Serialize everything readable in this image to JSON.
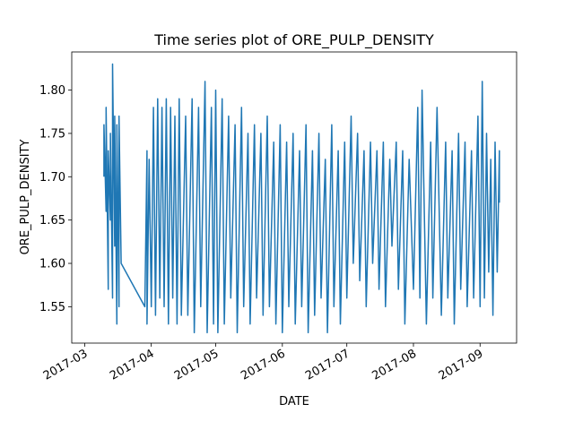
{
  "chart_data": {
    "type": "line",
    "title": "Time series plot of ORE_PULP_DENSITY",
    "xlabel": "DATE",
    "ylabel": "ORE_PULP_DENSITY",
    "xlim": [
      "2017-02-23",
      "2017-09-18"
    ],
    "ylim": [
      1.508,
      1.844
    ],
    "xticks": [
      {
        "date": "2017-03-01",
        "label": "2017-03"
      },
      {
        "date": "2017-04-01",
        "label": "2017-04"
      },
      {
        "date": "2017-05-01",
        "label": "2017-05"
      },
      {
        "date": "2017-06-01",
        "label": "2017-06"
      },
      {
        "date": "2017-07-01",
        "label": "2017-07"
      },
      {
        "date": "2017-08-01",
        "label": "2017-08"
      },
      {
        "date": "2017-09-01",
        "label": "2017-09"
      }
    ],
    "yticks": [
      {
        "value": 1.55,
        "label": "1.55"
      },
      {
        "value": 1.6,
        "label": "1.60"
      },
      {
        "value": 1.65,
        "label": "1.65"
      },
      {
        "value": 1.7,
        "label": "1.70"
      },
      {
        "value": 1.75,
        "label": "1.75"
      },
      {
        "value": 1.8,
        "label": "1.80"
      }
    ],
    "grid": false,
    "series": [
      {
        "color": "#1f77b4",
        "points": [
          [
            "2017-03-10",
            1.7
          ],
          [
            "2017-03-10",
            1.76
          ],
          [
            "2017-03-11",
            1.66
          ],
          [
            "2017-03-11",
            1.78
          ],
          [
            "2017-03-12",
            1.57
          ],
          [
            "2017-03-12",
            1.73
          ],
          [
            "2017-03-13",
            1.65
          ],
          [
            "2017-03-13",
            1.75
          ],
          [
            "2017-03-14",
            1.56
          ],
          [
            "2017-03-14",
            1.83
          ],
          [
            "2017-03-15",
            1.62
          ],
          [
            "2017-03-15",
            1.77
          ],
          [
            "2017-03-16",
            1.53
          ],
          [
            "2017-03-16",
            1.76
          ],
          [
            "2017-03-17",
            1.55
          ],
          [
            "2017-03-17",
            1.77
          ],
          [
            "2017-03-18",
            1.6
          ],
          [
            "2017-03-29",
            1.55
          ],
          [
            "2017-03-30",
            1.73
          ],
          [
            "2017-03-30",
            1.53
          ],
          [
            "2017-03-31",
            1.72
          ],
          [
            "2017-04-01",
            1.55
          ],
          [
            "2017-04-02",
            1.78
          ],
          [
            "2017-04-03",
            1.54
          ],
          [
            "2017-04-04",
            1.79
          ],
          [
            "2017-04-05",
            1.56
          ],
          [
            "2017-04-06",
            1.78
          ],
          [
            "2017-04-07",
            1.55
          ],
          [
            "2017-04-08",
            1.79
          ],
          [
            "2017-04-09",
            1.53
          ],
          [
            "2017-04-10",
            1.78
          ],
          [
            "2017-04-11",
            1.56
          ],
          [
            "2017-04-12",
            1.77
          ],
          [
            "2017-04-13",
            1.53
          ],
          [
            "2017-04-14",
            1.79
          ],
          [
            "2017-04-15",
            1.54
          ],
          [
            "2017-04-17",
            1.77
          ],
          [
            "2017-04-18",
            1.54
          ],
          [
            "2017-04-20",
            1.79
          ],
          [
            "2017-04-21",
            1.52
          ],
          [
            "2017-04-23",
            1.78
          ],
          [
            "2017-04-24",
            1.55
          ],
          [
            "2017-04-26",
            1.81
          ],
          [
            "2017-04-27",
            1.52
          ],
          [
            "2017-04-29",
            1.78
          ],
          [
            "2017-04-30",
            1.53
          ],
          [
            "2017-05-01",
            1.8
          ],
          [
            "2017-05-02",
            1.52
          ],
          [
            "2017-05-04",
            1.79
          ],
          [
            "2017-05-05",
            1.53
          ],
          [
            "2017-05-07",
            1.77
          ],
          [
            "2017-05-08",
            1.56
          ],
          [
            "2017-05-10",
            1.76
          ],
          [
            "2017-05-11",
            1.52
          ],
          [
            "2017-05-13",
            1.78
          ],
          [
            "2017-05-14",
            1.55
          ],
          [
            "2017-05-16",
            1.75
          ],
          [
            "2017-05-17",
            1.53
          ],
          [
            "2017-05-19",
            1.76
          ],
          [
            "2017-05-20",
            1.56
          ],
          [
            "2017-05-22",
            1.75
          ],
          [
            "2017-05-23",
            1.54
          ],
          [
            "2017-05-25",
            1.77
          ],
          [
            "2017-05-26",
            1.55
          ],
          [
            "2017-05-28",
            1.74
          ],
          [
            "2017-05-29",
            1.53
          ],
          [
            "2017-05-31",
            1.76
          ],
          [
            "2017-06-01",
            1.52
          ],
          [
            "2017-06-03",
            1.74
          ],
          [
            "2017-06-04",
            1.55
          ],
          [
            "2017-06-06",
            1.75
          ],
          [
            "2017-06-07",
            1.53
          ],
          [
            "2017-06-09",
            1.73
          ],
          [
            "2017-06-10",
            1.55
          ],
          [
            "2017-06-12",
            1.76
          ],
          [
            "2017-06-13",
            1.52
          ],
          [
            "2017-06-15",
            1.73
          ],
          [
            "2017-06-16",
            1.54
          ],
          [
            "2017-06-18",
            1.75
          ],
          [
            "2017-06-19",
            1.56
          ],
          [
            "2017-06-21",
            1.72
          ],
          [
            "2017-06-22",
            1.52
          ],
          [
            "2017-06-24",
            1.76
          ],
          [
            "2017-06-25",
            1.55
          ],
          [
            "2017-06-27",
            1.73
          ],
          [
            "2017-06-28",
            1.53
          ],
          [
            "2017-06-30",
            1.74
          ],
          [
            "2017-07-01",
            1.56
          ],
          [
            "2017-07-03",
            1.77
          ],
          [
            "2017-07-04",
            1.6
          ],
          [
            "2017-07-06",
            1.75
          ],
          [
            "2017-07-07",
            1.58
          ],
          [
            "2017-07-09",
            1.73
          ],
          [
            "2017-07-10",
            1.55
          ],
          [
            "2017-07-12",
            1.74
          ],
          [
            "2017-07-13",
            1.6
          ],
          [
            "2017-07-15",
            1.73
          ],
          [
            "2017-07-16",
            1.57
          ],
          [
            "2017-07-18",
            1.74
          ],
          [
            "2017-07-19",
            1.55
          ],
          [
            "2017-07-21",
            1.72
          ],
          [
            "2017-07-22",
            1.62
          ],
          [
            "2017-07-24",
            1.74
          ],
          [
            "2017-07-25",
            1.57
          ],
          [
            "2017-07-27",
            1.73
          ],
          [
            "2017-07-28",
            1.53
          ],
          [
            "2017-07-30",
            1.72
          ],
          [
            "2017-08-01",
            1.57
          ],
          [
            "2017-08-03",
            1.78
          ],
          [
            "2017-08-04",
            1.56
          ],
          [
            "2017-08-05",
            1.8
          ],
          [
            "2017-08-07",
            1.53
          ],
          [
            "2017-08-09",
            1.74
          ],
          [
            "2017-08-10",
            1.56
          ],
          [
            "2017-08-12",
            1.78
          ],
          [
            "2017-08-14",
            1.54
          ],
          [
            "2017-08-16",
            1.74
          ],
          [
            "2017-08-17",
            1.56
          ],
          [
            "2017-08-19",
            1.73
          ],
          [
            "2017-08-20",
            1.53
          ],
          [
            "2017-08-22",
            1.75
          ],
          [
            "2017-08-23",
            1.57
          ],
          [
            "2017-08-25",
            1.74
          ],
          [
            "2017-08-26",
            1.55
          ],
          [
            "2017-08-28",
            1.73
          ],
          [
            "2017-08-29",
            1.56
          ],
          [
            "2017-08-31",
            1.77
          ],
          [
            "2017-09-01",
            1.55
          ],
          [
            "2017-09-02",
            1.81
          ],
          [
            "2017-09-03",
            1.56
          ],
          [
            "2017-09-04",
            1.75
          ],
          [
            "2017-09-05",
            1.59
          ],
          [
            "2017-09-06",
            1.72
          ],
          [
            "2017-09-07",
            1.54
          ],
          [
            "2017-09-08",
            1.74
          ],
          [
            "2017-09-09",
            1.59
          ],
          [
            "2017-09-10",
            1.73
          ],
          [
            "2017-09-10",
            1.67
          ]
        ]
      }
    ]
  }
}
